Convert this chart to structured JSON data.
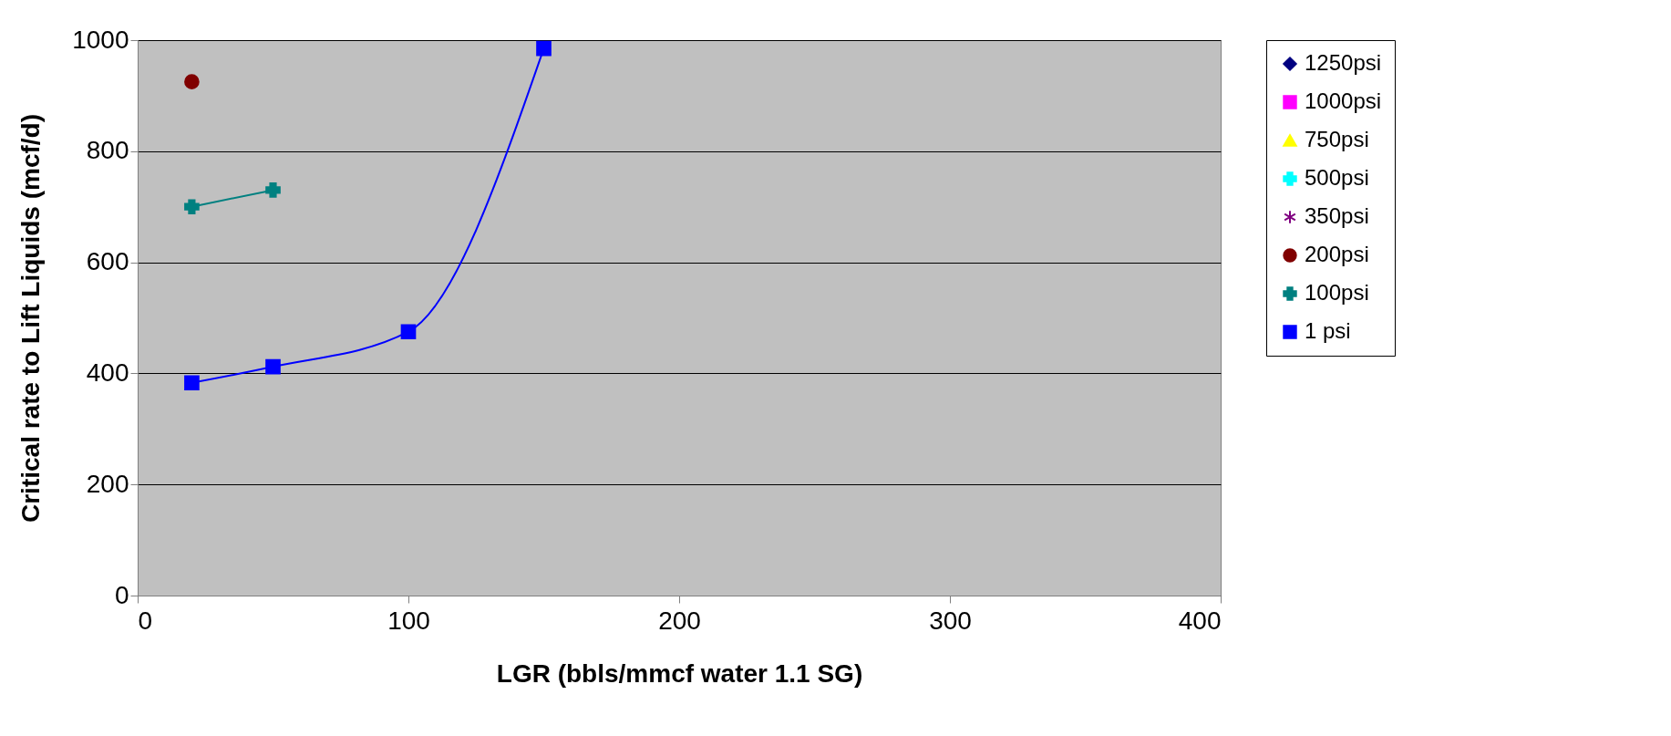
{
  "chart_data": {
    "type": "line",
    "xlabel": "LGR (bbls/mmcf water 1.1 SG)",
    "ylabel": "Critical rate to Lift Liquids (mcf/d)",
    "x": [
      20,
      50,
      100,
      150
    ],
    "xlim": [
      0,
      400
    ],
    "xticks": [
      0,
      100,
      200,
      300,
      400
    ],
    "ylim": [
      0,
      1000
    ],
    "yticks": [
      0,
      200,
      400,
      600,
      800,
      1000
    ],
    "grid": "y",
    "legend": "right",
    "series": [
      {
        "name": "1250psi",
        "color": "#000080",
        "marker": "diamond",
        "values": [
          null,
          null,
          null,
          null
        ]
      },
      {
        "name": "1000psi",
        "color": "#ff00ff",
        "marker": "square",
        "values": [
          null,
          null,
          null,
          null
        ]
      },
      {
        "name": "750psi",
        "color": "#ffff00",
        "marker": "triangle",
        "values": [
          null,
          null,
          null,
          null
        ]
      },
      {
        "name": "500psi",
        "color": "#00ffff",
        "marker": "cross",
        "values": [
          null,
          null,
          null,
          null
        ]
      },
      {
        "name": "350psi",
        "color": "#800080",
        "marker": "star",
        "values": [
          null,
          null,
          null,
          null
        ]
      },
      {
        "name": "200psi",
        "color": "#800000",
        "marker": "circle",
        "values": [
          925,
          null,
          null,
          null
        ]
      },
      {
        "name": "100psi",
        "color": "#008080",
        "marker": "cross",
        "values": [
          700,
          730,
          null,
          null
        ]
      },
      {
        "name": "1 psi",
        "color": "#0000ff",
        "marker": "square",
        "values": [
          383,
          412,
          475,
          985
        ]
      }
    ]
  }
}
